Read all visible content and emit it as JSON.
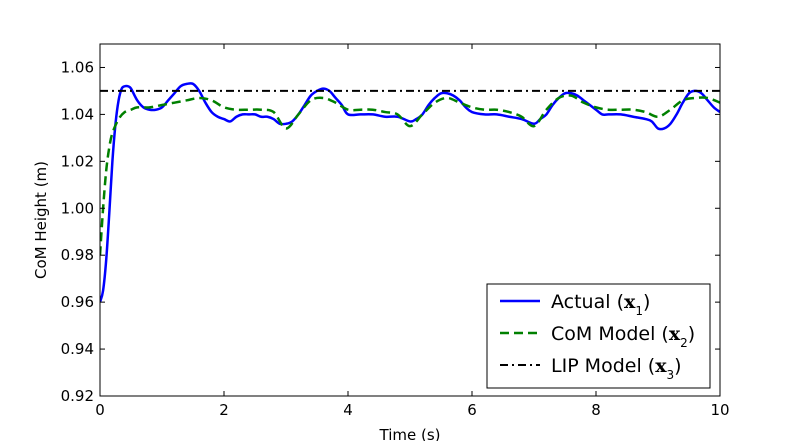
{
  "chart_data": {
    "type": "line",
    "title": "",
    "xlabel": "Time (s)",
    "ylabel": "CoM Height (m)",
    "xlim": [
      0,
      10
    ],
    "ylim": [
      0.92,
      1.07
    ],
    "xticks": [
      "0",
      "2",
      "4",
      "6",
      "8",
      "10"
    ],
    "yticks": [
      "0.92",
      "0.94",
      "0.96",
      "0.98",
      "1.00",
      "1.02",
      "1.04",
      "1.06"
    ],
    "grid": false,
    "legend_position": "bottom-right",
    "series": [
      {
        "name": "Actual",
        "subscript": "1",
        "color": "#0000ff",
        "style": "solid",
        "x": [
          0,
          0.05,
          0.1,
          0.15,
          0.2,
          0.25,
          0.3,
          0.35,
          0.4,
          0.45,
          0.5,
          0.6,
          0.7,
          0.8,
          0.9,
          1.0,
          1.1,
          1.2,
          1.3,
          1.4,
          1.5,
          1.6,
          1.7,
          1.8,
          1.9,
          2.0,
          2.1,
          2.2,
          2.3,
          2.4,
          2.5,
          2.6,
          2.7,
          2.8,
          2.9,
          3.0,
          3.1,
          3.2,
          3.3,
          3.4,
          3.5,
          3.6,
          3.7,
          3.8,
          3.9,
          4.0,
          4.2,
          4.4,
          4.6,
          4.8,
          5.0,
          5.1,
          5.2,
          5.3,
          5.4,
          5.5,
          5.6,
          5.7,
          5.8,
          5.9,
          6.0,
          6.2,
          6.4,
          6.6,
          6.8,
          7.0,
          7.1,
          7.2,
          7.3,
          7.4,
          7.5,
          7.6,
          7.7,
          7.8,
          7.9,
          8.0,
          8.1,
          8.2,
          8.4,
          8.6,
          8.8,
          8.9,
          9.0,
          9.1,
          9.2,
          9.3,
          9.4,
          9.5,
          9.6,
          9.7,
          9.8,
          9.9,
          10.0
        ],
        "y": [
          0.96,
          0.965,
          0.978,
          0.998,
          1.02,
          1.036,
          1.046,
          1.051,
          1.052,
          1.052,
          1.051,
          1.046,
          1.043,
          1.042,
          1.042,
          1.043,
          1.046,
          1.049,
          1.052,
          1.053,
          1.053,
          1.05,
          1.045,
          1.041,
          1.039,
          1.038,
          1.037,
          1.039,
          1.04,
          1.04,
          1.04,
          1.039,
          1.039,
          1.038,
          1.036,
          1.036,
          1.037,
          1.04,
          1.044,
          1.048,
          1.05,
          1.051,
          1.05,
          1.047,
          1.044,
          1.04,
          1.04,
          1.04,
          1.039,
          1.039,
          1.037,
          1.038,
          1.04,
          1.044,
          1.047,
          1.049,
          1.049,
          1.048,
          1.046,
          1.043,
          1.041,
          1.04,
          1.04,
          1.039,
          1.038,
          1.036,
          1.038,
          1.04,
          1.044,
          1.047,
          1.049,
          1.049,
          1.048,
          1.046,
          1.044,
          1.042,
          1.04,
          1.04,
          1.04,
          1.039,
          1.038,
          1.037,
          1.034,
          1.034,
          1.036,
          1.04,
          1.045,
          1.049,
          1.05,
          1.049,
          1.046,
          1.043,
          1.041
        ]
      },
      {
        "name": "CoM Model",
        "subscript": "2",
        "color": "#008000",
        "style": "dashed",
        "x": [
          0,
          0.05,
          0.1,
          0.15,
          0.2,
          0.3,
          0.4,
          0.5,
          0.6,
          0.8,
          1.0,
          1.2,
          1.4,
          1.6,
          1.8,
          2.0,
          2.2,
          2.4,
          2.6,
          2.8,
          3.0,
          3.2,
          3.4,
          3.6,
          3.8,
          4.0,
          4.2,
          4.4,
          4.6,
          4.8,
          5.0,
          5.2,
          5.4,
          5.6,
          5.8,
          6.0,
          6.2,
          6.4,
          6.6,
          6.8,
          7.0,
          7.2,
          7.4,
          7.6,
          7.8,
          8.0,
          8.2,
          8.4,
          8.6,
          8.8,
          9.0,
          9.2,
          9.4,
          9.6,
          9.8,
          10.0
        ],
        "y": [
          0.98,
          1.0,
          1.016,
          1.026,
          1.032,
          1.038,
          1.041,
          1.042,
          1.043,
          1.043,
          1.044,
          1.045,
          1.046,
          1.047,
          1.046,
          1.043,
          1.042,
          1.042,
          1.042,
          1.041,
          1.034,
          1.04,
          1.046,
          1.047,
          1.045,
          1.042,
          1.042,
          1.042,
          1.041,
          1.04,
          1.035,
          1.04,
          1.045,
          1.047,
          1.045,
          1.043,
          1.042,
          1.042,
          1.041,
          1.039,
          1.035,
          1.042,
          1.047,
          1.048,
          1.045,
          1.043,
          1.042,
          1.042,
          1.042,
          1.041,
          1.039,
          1.042,
          1.046,
          1.047,
          1.047,
          1.045
        ]
      },
      {
        "name": "LIP Model",
        "subscript": "3",
        "color": "#000000",
        "style": "dashdot",
        "x": [
          0,
          10
        ],
        "y": [
          1.05,
          1.05
        ]
      }
    ]
  }
}
